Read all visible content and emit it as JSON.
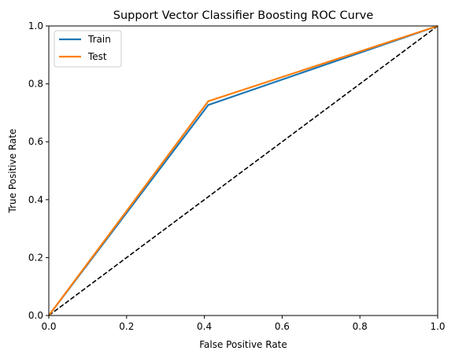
{
  "chart_data": {
    "type": "line",
    "title": "Support Vector Classifier Boosting ROC Curve",
    "xlabel": "False Positive Rate",
    "ylabel": "True Positive Rate",
    "xlim": [
      0.0,
      1.0
    ],
    "ylim": [
      0.0,
      1.0
    ],
    "xticks": [
      "0.0",
      "0.2",
      "0.4",
      "0.6",
      "0.8",
      "1.0"
    ],
    "yticks": [
      "0.0",
      "0.2",
      "0.4",
      "0.6",
      "0.8",
      "1.0"
    ],
    "grid": false,
    "legend_position": "top-left",
    "series": [
      {
        "name": "Train",
        "color": "#1f77b4",
        "x": [
          0.0,
          0.41,
          1.0
        ],
        "y": [
          0.0,
          0.727,
          1.0
        ]
      },
      {
        "name": "Test",
        "color": "#ff7f0e",
        "x": [
          0.0,
          0.41,
          1.0
        ],
        "y": [
          0.0,
          0.74,
          1.0
        ]
      }
    ],
    "reference_line": {
      "color": "#000000",
      "style": "dashed",
      "x": [
        0.0,
        1.0
      ],
      "y": [
        0.0,
        1.0
      ]
    }
  }
}
